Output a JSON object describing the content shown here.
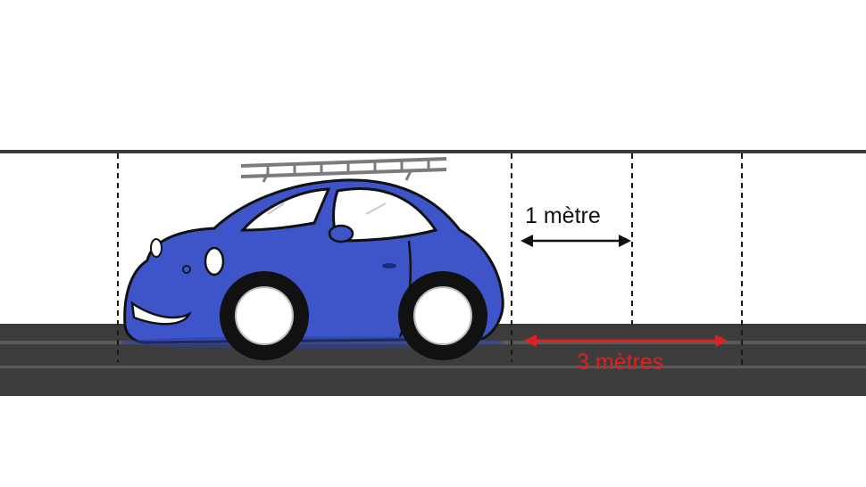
{
  "labels": {
    "one_metre": "1 mètre",
    "three_metres": "3 mètres"
  },
  "colors": {
    "car_body": "#3d55c9",
    "car_shadow": "#2a3ea0",
    "road": "#3d3d3d",
    "road_stripe": "#5a5a5a",
    "rail": "#3a3a3a",
    "ladder": "#7b7b7b",
    "dashed_line": "#1a1a1a",
    "one_metre_arrow": "#111111",
    "three_metres_arrow": "#e02020",
    "tire": "#111111",
    "rim": "#ffffff"
  },
  "icons": {
    "car": "car-icon",
    "ladder": "ladder-icon"
  }
}
